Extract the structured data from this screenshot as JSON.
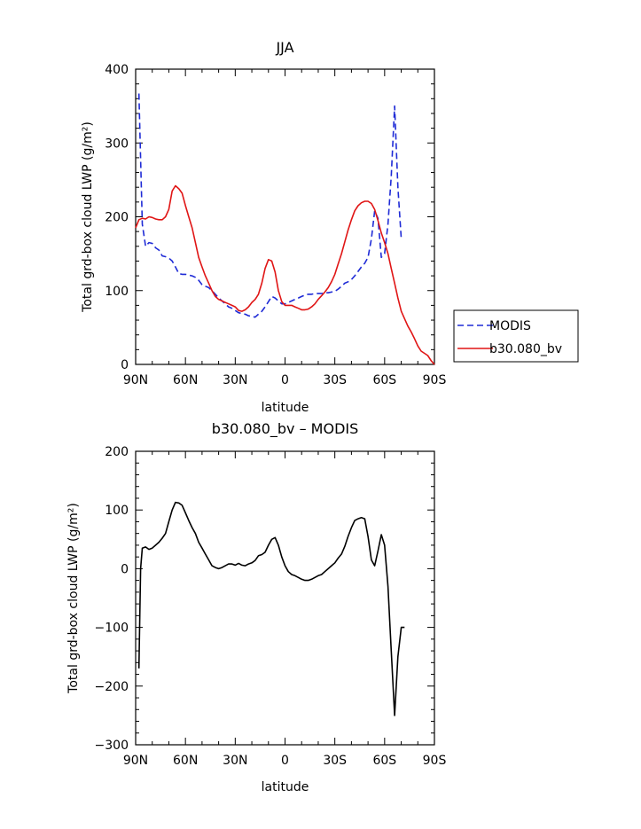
{
  "chart_data": [
    {
      "type": "line",
      "title": "JJA",
      "xlabel": "latitude",
      "ylabel": "Total grd-box cloud LWP (g/m²)",
      "xlim": [
        90,
        -90
      ],
      "ylim": [
        0,
        400
      ],
      "xticks": [
        90,
        60,
        30,
        0,
        -30,
        -60,
        -90
      ],
      "xtick_labels": [
        "90N",
        "60N",
        "30N",
        "0",
        "30S",
        "60S",
        "90S"
      ],
      "yticks": [
        0,
        100,
        200,
        300,
        400
      ],
      "ytick_labels": [
        "0",
        "100",
        "200",
        "300",
        "400"
      ],
      "legend": "right",
      "series": [
        {
          "name": "MODIS",
          "color": "#1f2bd6",
          "style": "dashed",
          "x": [
            88,
            86,
            84,
            82,
            80,
            78,
            76,
            74,
            72,
            70,
            68,
            66,
            64,
            62,
            60,
            58,
            56,
            54,
            52,
            50,
            48,
            46,
            44,
            42,
            40,
            38,
            36,
            34,
            32,
            30,
            28,
            26,
            24,
            22,
            20,
            18,
            16,
            14,
            12,
            10,
            8,
            6,
            4,
            2,
            0,
            -2,
            -4,
            -6,
            -8,
            -10,
            -12,
            -14,
            -16,
            -18,
            -20,
            -22,
            -24,
            -26,
            -28,
            -30,
            -32,
            -34,
            -36,
            -38,
            -40,
            -42,
            -44,
            -46,
            -48,
            -50,
            -52,
            -54,
            -56,
            -58,
            -60,
            -62,
            -64,
            -66,
            -68,
            -70
          ],
          "y": [
            367,
            190,
            160,
            165,
            164,
            158,
            155,
            147,
            146,
            144,
            140,
            132,
            123,
            122,
            122,
            121,
            120,
            118,
            114,
            108,
            106,
            104,
            100,
            95,
            90,
            86,
            82,
            78,
            76,
            73,
            70,
            69,
            68,
            66,
            65,
            64,
            68,
            72,
            78,
            85,
            92,
            90,
            86,
            82,
            82,
            84,
            86,
            88,
            90,
            92,
            94,
            95,
            95,
            96,
            96,
            96,
            97,
            97,
            98,
            99,
            102,
            106,
            110,
            112,
            115,
            120,
            126,
            132,
            137,
            145,
            170,
            208,
            198,
            145,
            150,
            190,
            255,
            350,
            240,
            170
          ]
        },
        {
          "name": "b30.080_bv",
          "color": "#e01515",
          "style": "solid",
          "x": [
            90,
            88,
            86,
            84,
            82,
            80,
            78,
            76,
            74,
            72,
            70,
            68,
            66,
            64,
            62,
            60,
            58,
            56,
            54,
            52,
            50,
            48,
            46,
            44,
            42,
            40,
            38,
            36,
            34,
            32,
            30,
            28,
            26,
            24,
            22,
            20,
            18,
            16,
            14,
            12,
            10,
            8,
            6,
            4,
            2,
            0,
            -2,
            -4,
            -6,
            -8,
            -10,
            -12,
            -14,
            -16,
            -18,
            -20,
            -22,
            -24,
            -26,
            -28,
            -30,
            -32,
            -34,
            -36,
            -38,
            -40,
            -42,
            -44,
            -46,
            -48,
            -50,
            -52,
            -54,
            -56,
            -58,
            -60,
            -62,
            -64,
            -66,
            -68,
            -70,
            -72,
            -74,
            -76,
            -78,
            -80,
            -82,
            -84,
            -86,
            -88,
            -90
          ],
          "y": [
            185,
            196,
            198,
            197,
            200,
            199,
            197,
            196,
            196,
            200,
            210,
            235,
            242,
            238,
            232,
            215,
            200,
            185,
            165,
            145,
            132,
            120,
            110,
            100,
            92,
            88,
            86,
            84,
            82,
            80,
            78,
            73,
            72,
            74,
            78,
            84,
            88,
            95,
            110,
            130,
            142,
            140,
            125,
            100,
            85,
            80,
            80,
            80,
            78,
            76,
            74,
            74,
            75,
            78,
            82,
            88,
            93,
            98,
            104,
            112,
            122,
            136,
            150,
            166,
            182,
            196,
            208,
            215,
            219,
            221,
            221,
            218,
            210,
            195,
            178,
            165,
            150,
            130,
            110,
            90,
            72,
            62,
            52,
            44,
            35,
            25,
            18,
            15,
            12,
            5,
            0
          ]
        }
      ]
    },
    {
      "type": "line",
      "title": "b30.080_bv – MODIS",
      "xlabel": "latitude",
      "ylabel": "Total grd-box cloud LWP (g/m²)",
      "xlim": [
        90,
        -90
      ],
      "ylim": [
        -300,
        200
      ],
      "xticks": [
        90,
        60,
        30,
        0,
        -30,
        -60,
        -90
      ],
      "xtick_labels": [
        "90N",
        "60N",
        "30N",
        "0",
        "30S",
        "60S",
        "90S"
      ],
      "yticks": [
        -300,
        -200,
        -100,
        0,
        100,
        200
      ],
      "ytick_labels": [
        "−300",
        "−200",
        "−100",
        "0",
        "100",
        "200"
      ],
      "series": [
        {
          "color": "#000000",
          "style": "solid",
          "x": [
            88,
            87,
            86,
            84,
            82,
            80,
            78,
            76,
            74,
            72,
            70,
            68,
            66,
            64,
            62,
            60,
            58,
            56,
            54,
            52,
            50,
            48,
            46,
            44,
            42,
            40,
            38,
            36,
            34,
            32,
            30,
            28,
            26,
            24,
            22,
            20,
            18,
            16,
            14,
            12,
            10,
            8,
            6,
            4,
            2,
            0,
            -2,
            -4,
            -6,
            -8,
            -10,
            -12,
            -14,
            -16,
            -18,
            -20,
            -22,
            -24,
            -26,
            -28,
            -30,
            -32,
            -34,
            -36,
            -38,
            -40,
            -42,
            -44,
            -46,
            -48,
            -50,
            -52,
            -54,
            -56,
            -58,
            -60,
            -62,
            -64,
            -66,
            -68,
            -70,
            -72
          ],
          "y": [
            -170,
            0,
            35,
            37,
            33,
            35,
            40,
            45,
            52,
            60,
            80,
            100,
            113,
            112,
            108,
            95,
            82,
            70,
            60,
            45,
            35,
            25,
            15,
            5,
            2,
            0,
            2,
            5,
            8,
            8,
            6,
            9,
            6,
            5,
            8,
            10,
            14,
            22,
            24,
            28,
            40,
            50,
            53,
            40,
            20,
            5,
            -5,
            -10,
            -12,
            -15,
            -18,
            -20,
            -20,
            -18,
            -15,
            -12,
            -10,
            -5,
            0,
            5,
            10,
            18,
            25,
            38,
            55,
            70,
            82,
            85,
            87,
            85,
            55,
            15,
            5,
            30,
            58,
            40,
            -30,
            -140,
            -250,
            -150,
            -100,
            -100
          ]
        }
      ]
    }
  ]
}
